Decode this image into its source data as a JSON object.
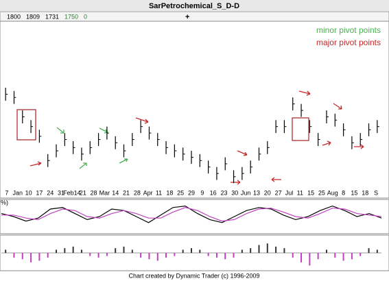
{
  "header": {
    "title": "SarPetrochemical_S_D-D",
    "quote": [
      1800,
      1809,
      1731,
      1750,
      0
    ],
    "plus": "+"
  },
  "footer": "Chart created by Dynamic Trader  (c)  1996-2009",
  "chart_data": [
    {
      "type": "range-bar",
      "color": "#000",
      "annotations": [
        {
          "text": "minor pivot points",
          "color": "#4caf50"
        },
        {
          "text": "major pivot points",
          "color": "#c62828"
        }
      ],
      "x_labels": [
        "7",
        "Jan",
        "10",
        "17",
        "24",
        "31",
        "Feb14",
        "21",
        "28",
        "Mar",
        "14",
        "21",
        "28",
        "Apr",
        "11",
        "18",
        "25",
        "29",
        "9",
        "16",
        "23",
        "30",
        "Jun",
        "13",
        "20",
        "27",
        "Jul",
        "11",
        "15",
        "25",
        "Aug",
        "8",
        "15",
        "18",
        "S"
      ],
      "ylim": [
        0,
        100
      ],
      "high": [
        61,
        59,
        47,
        41,
        35,
        20,
        26,
        33,
        28,
        24,
        28,
        33,
        37,
        31,
        26,
        33,
        41,
        37,
        33,
        28,
        26,
        24,
        22,
        20,
        16,
        12,
        18,
        10,
        12,
        16,
        24,
        28,
        41,
        41,
        55,
        51,
        41,
        33,
        47,
        45,
        39,
        31,
        33,
        39,
        41
      ],
      "low": [
        53,
        51,
        39,
        33,
        27,
        12,
        18,
        25,
        20,
        16,
        20,
        25,
        29,
        23,
        18,
        25,
        33,
        29,
        25,
        20,
        18,
        16,
        14,
        12,
        8,
        4,
        10,
        2,
        4,
        8,
        16,
        20,
        33,
        33,
        47,
        43,
        33,
        25,
        39,
        37,
        31,
        23,
        25,
        31,
        33
      ]
    },
    {
      "type": "line",
      "label": "%)",
      "ylim": [
        0,
        100
      ],
      "series": [
        {
          "color": "#000",
          "values": [
            60,
            50,
            35,
            45,
            75,
            80,
            60,
            40,
            50,
            75,
            70,
            50,
            30,
            55,
            80,
            85,
            60,
            40,
            30,
            50,
            70,
            80,
            75,
            55,
            40,
            50,
            70,
            85,
            70,
            50,
            60,
            45
          ]
        },
        {
          "color": "#c040c0",
          "values": [
            55,
            55,
            45,
            40,
            60,
            75,
            70,
            50,
            45,
            60,
            70,
            60,
            45,
            45,
            65,
            80,
            70,
            50,
            35,
            40,
            60,
            75,
            78,
            65,
            50,
            45,
            60,
            78,
            75,
            60,
            55,
            50
          ]
        }
      ]
    },
    {
      "type": "bar",
      "ylim": [
        -10,
        10
      ],
      "pos_color": "#333",
      "neg_color": "#c040c0",
      "values": [
        2,
        -3,
        -4,
        -6,
        -5,
        -3,
        2,
        3,
        4,
        2,
        -2,
        -3,
        -2,
        3,
        4,
        2,
        -3,
        -4,
        -5,
        -3,
        -2,
        2,
        3,
        2,
        -2,
        -3,
        -4,
        -3,
        2,
        3,
        5,
        6,
        4,
        3,
        -3,
        -6,
        -8,
        -4,
        2,
        -3,
        -5,
        -4,
        -2,
        3,
        2
      ]
    }
  ]
}
